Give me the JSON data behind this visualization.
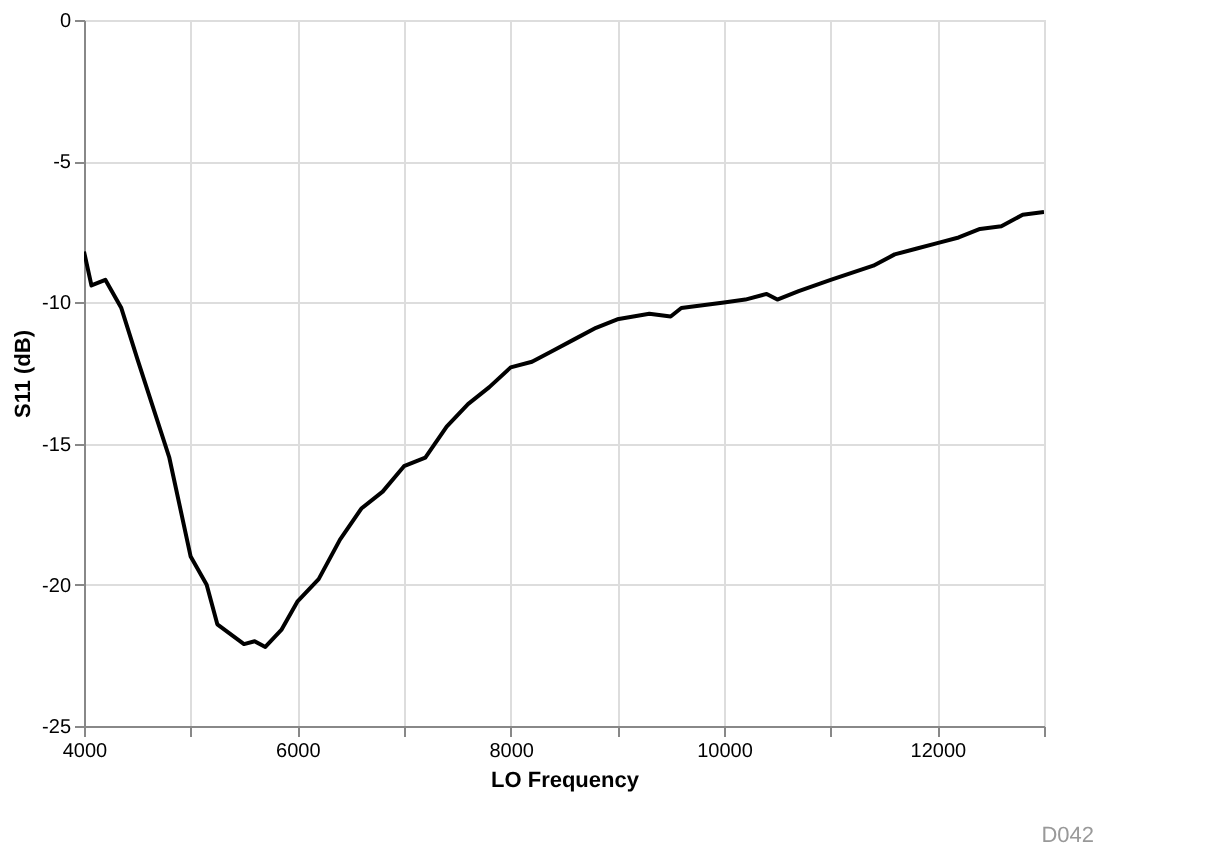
{
  "chart_data": {
    "type": "line",
    "xlabel": "LO Frequency",
    "ylabel": "S11 (dB)",
    "annotations": [
      "D042"
    ],
    "x": [
      4000,
      4070,
      4200,
      4350,
      4500,
      4800,
      5000,
      5150,
      5250,
      5500,
      5600,
      5700,
      5850,
      6000,
      6200,
      6400,
      6600,
      6800,
      7000,
      7200,
      7400,
      7600,
      7800,
      8000,
      8200,
      8400,
      8600,
      8800,
      9000,
      9300,
      9500,
      9600,
      9800,
      10000,
      10200,
      10400,
      10500,
      10700,
      11000,
      11400,
      11600,
      11800,
      12000,
      12200,
      12400,
      12600,
      12800,
      13000
    ],
    "series": [
      {
        "color": "#000000",
        "values": [
          -8.2,
          -9.4,
          -9.2,
          -10.2,
          -12.0,
          -15.5,
          -19.0,
          -20.0,
          -21.4,
          -22.1,
          -22.0,
          -22.2,
          -21.6,
          -20.6,
          -19.8,
          -18.4,
          -17.3,
          -16.7,
          -15.8,
          -15.5,
          -14.4,
          -13.6,
          -13.0,
          -12.3,
          -12.1,
          -11.7,
          -11.3,
          -10.9,
          -10.6,
          -10.4,
          -10.5,
          -10.2,
          -10.1,
          -10.0,
          -9.9,
          -9.7,
          -9.9,
          -9.6,
          -9.2,
          -8.7,
          -8.3,
          -8.1,
          -7.9,
          -7.7,
          -7.4,
          -7.3,
          -6.9,
          -6.8
        ]
      }
    ],
    "xlim": [
      4000,
      13000
    ],
    "xticks": [
      4000,
      {
        "value": 5000,
        "label": null
      },
      6000,
      {
        "value": 7000,
        "label": null
      },
      8000,
      {
        "value": 9000,
        "label": null
      },
      10000,
      {
        "value": 11000,
        "label": null
      },
      12000,
      {
        "value": 13000,
        "label": null
      }
    ],
    "ylim": [
      -25,
      0
    ],
    "yticks": [
      -25,
      -20,
      -15,
      -10,
      -5,
      0
    ],
    "grid": true,
    "marker": "none",
    "line_style": "solid"
  }
}
